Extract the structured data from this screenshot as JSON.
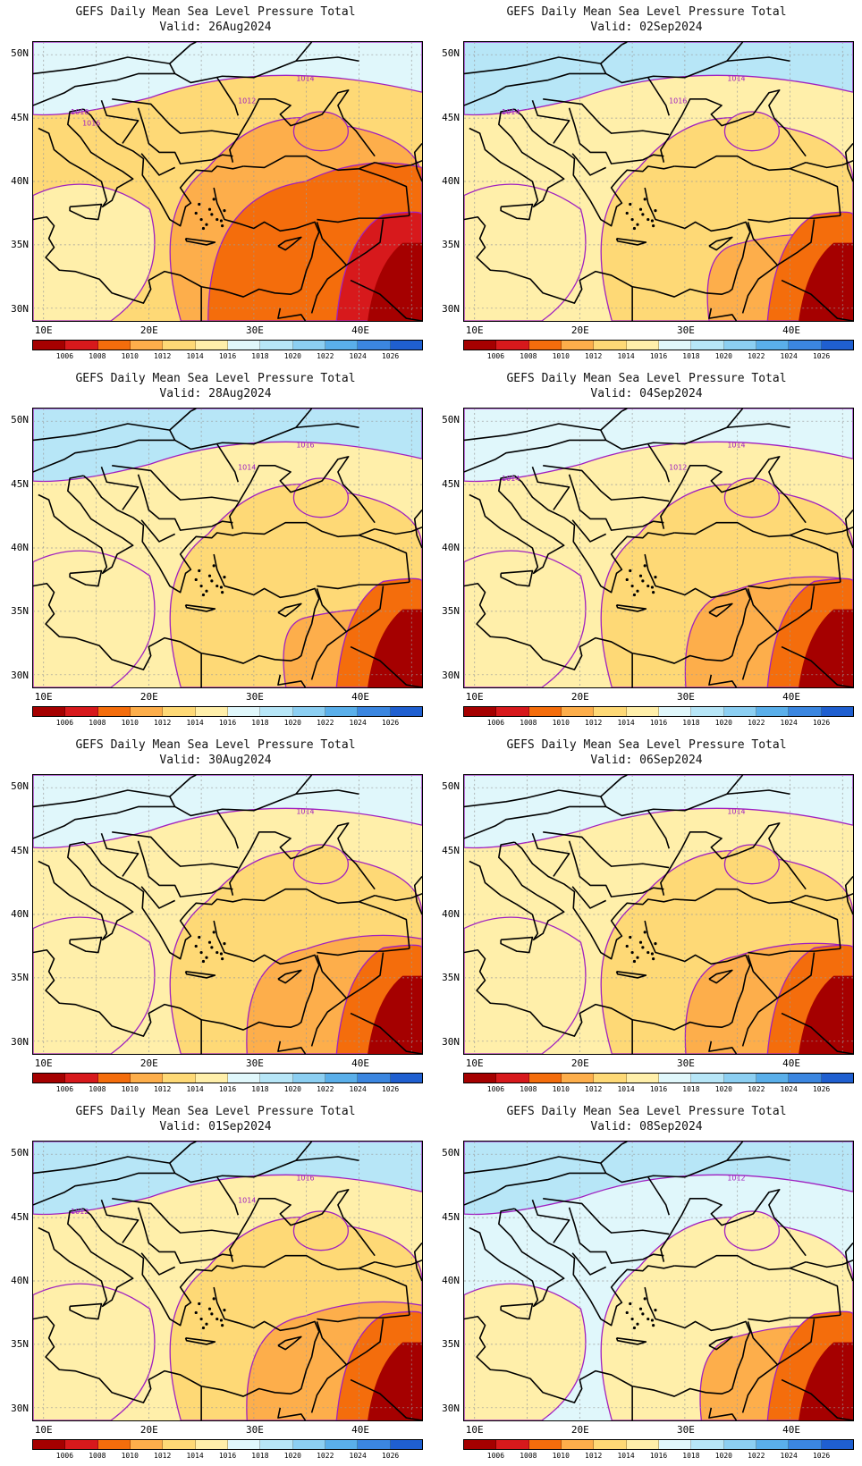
{
  "panel_title": "GEFS Daily Mean Sea Level Pressure Total",
  "lat_labels": [
    "50N",
    "45N",
    "40N",
    "35N",
    "30N"
  ],
  "lon_labels": [
    "10E",
    "20E",
    "30E",
    "40E"
  ],
  "colorbar": {
    "labels": [
      "1006",
      "1008",
      "1010",
      "1012",
      "1014",
      "1016",
      "1018",
      "1020",
      "1022",
      "1024",
      "1026"
    ],
    "colors": [
      "#a50000",
      "#d7191c",
      "#f46d0c",
      "#fdae4b",
      "#fed976",
      "#ffefaa",
      "#e0f7fb",
      "#b7e6f7",
      "#8ccff2",
      "#5aafea",
      "#3b86e0",
      "#1f5fd0"
    ]
  },
  "contour_color": "#a020c0",
  "panels": [
    {
      "valid": "Valid: 26Aug2024",
      "contour_labels": [
        "1014",
        "1012",
        "1016",
        "1016"
      ]
    },
    {
      "valid": "Valid: 02Sep2024",
      "contour_labels": [
        "1014",
        "1016",
        "1014"
      ]
    },
    {
      "valid": "Valid: 28Aug2024",
      "contour_labels": [
        "1016",
        "1014"
      ]
    },
    {
      "valid": "Valid: 04Sep2024",
      "contour_labels": [
        "1014",
        "1012",
        "1014"
      ]
    },
    {
      "valid": "Valid: 30Aug2024",
      "contour_labels": [
        "1014"
      ]
    },
    {
      "valid": "Valid: 06Sep2024",
      "contour_labels": [
        "1014"
      ]
    },
    {
      "valid": "Valid: 01Sep2024",
      "contour_labels": [
        "1016",
        "1014",
        "1012"
      ]
    },
    {
      "valid": "Valid: 08Sep2024",
      "contour_labels": [
        "1012"
      ]
    }
  ]
}
